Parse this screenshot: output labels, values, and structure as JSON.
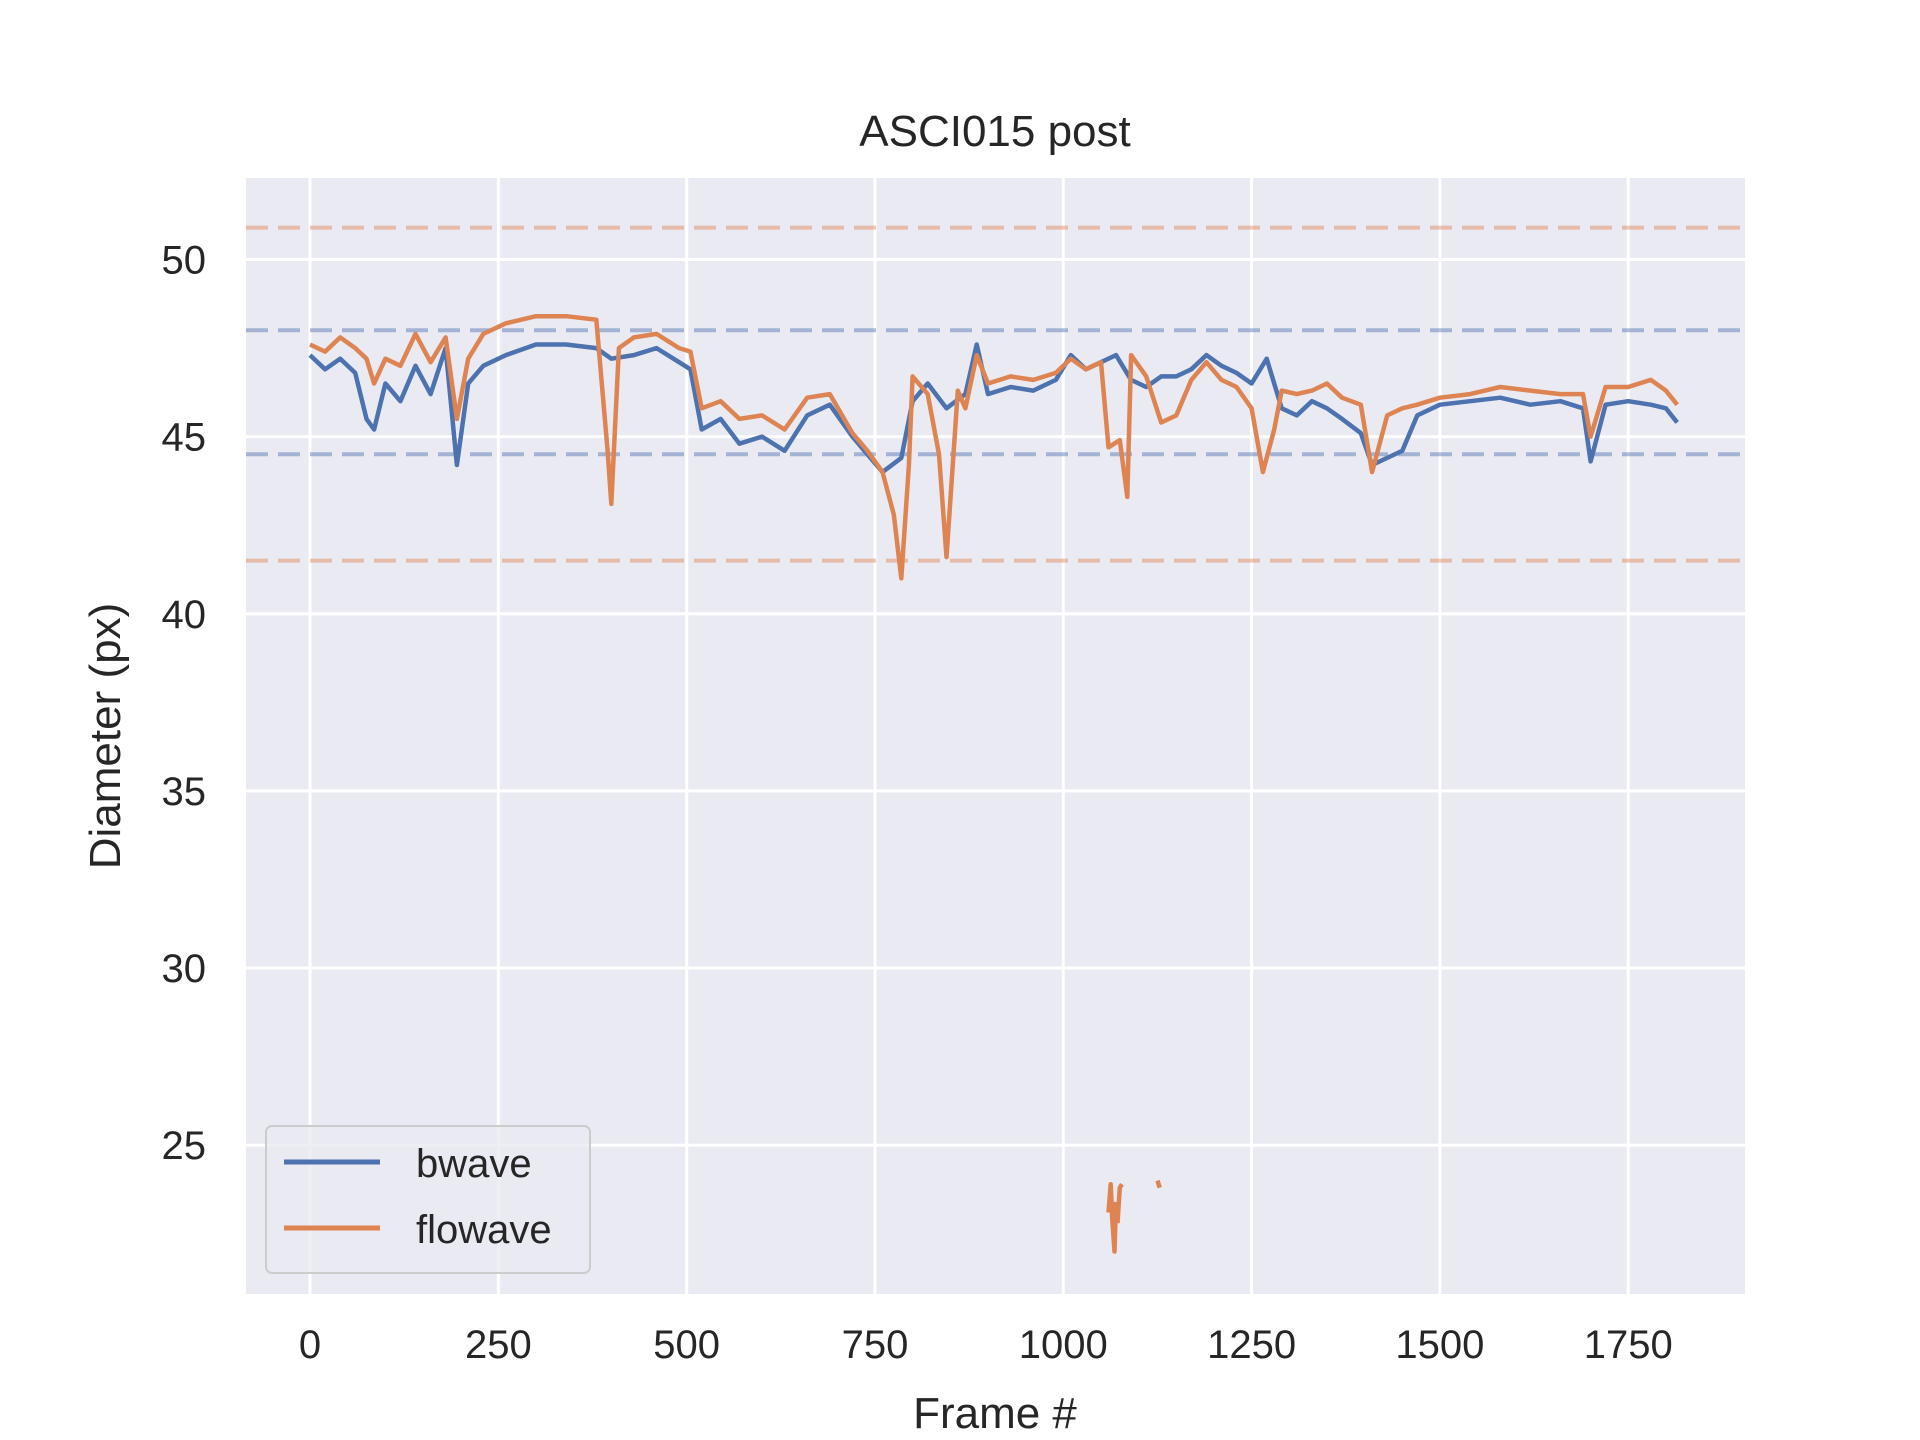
{
  "chart_data": {
    "type": "line",
    "title": "ASCI015 post",
    "xlabel": "Frame #",
    "ylabel": "Diameter (px)",
    "xlim": [
      -85,
      1905
    ],
    "ylim": [
      20.8,
      52.3
    ],
    "xticks": [
      0,
      250,
      500,
      750,
      1000,
      1250,
      1500,
      1750
    ],
    "yticks": [
      25,
      30,
      35,
      40,
      45,
      50
    ],
    "grid": true,
    "legend_position": "lower-left",
    "series": [
      {
        "name": "bwave",
        "color": "#4c72b0",
        "x": [
          0,
          20,
          40,
          60,
          75,
          85,
          100,
          120,
          140,
          160,
          180,
          195,
          210,
          230,
          260,
          300,
          340,
          380,
          400,
          430,
          460,
          490,
          505,
          520,
          545,
          570,
          600,
          630,
          660,
          690,
          720,
          740,
          760,
          785,
          800,
          820,
          845,
          870,
          885,
          900,
          930,
          960,
          990,
          1010,
          1030,
          1050,
          1070,
          1090,
          1110,
          1130,
          1150,
          1170,
          1190,
          1210,
          1230,
          1250,
          1270,
          1290,
          1310,
          1330,
          1350,
          1370,
          1395,
          1410,
          1430,
          1450,
          1470,
          1500,
          1540,
          1580,
          1620,
          1660,
          1690,
          1700,
          1720,
          1750,
          1780,
          1800,
          1815
        ],
        "y": [
          47.3,
          46.9,
          47.2,
          46.8,
          45.5,
          45.2,
          46.5,
          46.0,
          47.0,
          46.2,
          47.5,
          44.2,
          46.5,
          47.0,
          47.3,
          47.6,
          47.6,
          47.5,
          47.2,
          47.3,
          47.5,
          47.1,
          46.9,
          45.2,
          45.5,
          44.8,
          45.0,
          44.6,
          45.6,
          45.9,
          45.0,
          44.5,
          44.0,
          44.4,
          46.0,
          46.5,
          45.8,
          46.2,
          47.6,
          46.2,
          46.4,
          46.3,
          46.6,
          47.3,
          46.9,
          47.1,
          47.3,
          46.6,
          46.4,
          46.7,
          46.7,
          46.9,
          47.3,
          47.0,
          46.8,
          46.5,
          47.2,
          45.8,
          45.6,
          46.0,
          45.8,
          45.5,
          45.1,
          44.2,
          44.4,
          44.6,
          45.6,
          45.9,
          46.0,
          46.1,
          45.9,
          46.0,
          45.8,
          44.3,
          45.9,
          46.0,
          45.9,
          45.8,
          45.4
        ]
      },
      {
        "name": "flowave",
        "color": "#dd8452",
        "x": [
          0,
          20,
          40,
          60,
          75,
          85,
          100,
          120,
          140,
          160,
          180,
          195,
          210,
          230,
          260,
          300,
          340,
          380,
          395,
          400,
          410,
          430,
          460,
          490,
          505,
          520,
          545,
          570,
          600,
          630,
          660,
          690,
          720,
          740,
          760,
          775,
          785,
          795,
          800,
          820,
          835,
          845,
          860,
          870,
          885,
          900,
          930,
          960,
          990,
          1010,
          1030,
          1050,
          1060,
          1075,
          1085,
          1090,
          1110,
          1130,
          1150,
          1170,
          1190,
          1210,
          1230,
          1250,
          1265,
          1280,
          1290,
          1310,
          1330,
          1350,
          1370,
          1395,
          1410,
          1430,
          1450,
          1470,
          1500,
          1540,
          1580,
          1620,
          1660,
          1690,
          1700,
          1720,
          1750,
          1780,
          1800,
          1815
        ],
        "y": [
          47.6,
          47.4,
          47.8,
          47.5,
          47.2,
          46.5,
          47.2,
          47.0,
          47.9,
          47.1,
          47.8,
          45.5,
          47.2,
          47.9,
          48.2,
          48.4,
          48.4,
          48.3,
          44.6,
          43.1,
          47.5,
          47.8,
          47.9,
          47.5,
          47.4,
          45.8,
          46.0,
          45.5,
          45.6,
          45.2,
          46.1,
          46.2,
          45.1,
          44.6,
          44.0,
          42.8,
          41.0,
          44.2,
          46.7,
          46.2,
          44.5,
          41.6,
          46.3,
          45.8,
          47.3,
          46.5,
          46.7,
          46.6,
          46.8,
          47.2,
          46.9,
          47.1,
          44.7,
          44.9,
          43.3,
          47.3,
          46.7,
          45.4,
          45.6,
          46.6,
          47.1,
          46.6,
          46.4,
          45.8,
          44.0,
          45.2,
          46.3,
          46.2,
          46.3,
          46.5,
          46.1,
          45.9,
          44.0,
          45.6,
          45.8,
          45.9,
          46.1,
          46.2,
          46.4,
          46.3,
          46.2,
          46.2,
          45.0,
          46.4,
          46.4,
          46.6,
          46.3,
          45.9
        ],
        "extra_segments": [
          {
            "x": [
              1060,
              1063,
              1065,
              1068,
              1070
            ],
            "y": [
              23.1,
              23.9,
              22.9,
              22.0,
              23.4
            ]
          },
          {
            "x": [
              1072,
              1075,
              1078
            ],
            "y": [
              22.8,
              23.8,
              23.9
            ]
          },
          {
            "x": [
              1125,
              1128
            ],
            "y": [
              24.0,
              23.8
            ]
          }
        ]
      },
      {
        "name": "",
        "color": "#4c72b0",
        "style": "dashed",
        "x": [
          -85,
          1905
        ],
        "y": [
          48.0,
          48.0
        ]
      },
      {
        "name": "",
        "color": "#4c72b0",
        "style": "dashed",
        "x": [
          -85,
          1905
        ],
        "y": [
          44.5,
          44.5
        ]
      },
      {
        "name": "",
        "color": "#dd8452",
        "style": "dashed",
        "x": [
          -85,
          1905
        ],
        "y": [
          50.9,
          50.9
        ]
      },
      {
        "name": "",
        "color": "#dd8452",
        "style": "dashed",
        "x": [
          -85,
          1905
        ],
        "y": [
          41.5,
          41.5
        ]
      }
    ]
  }
}
